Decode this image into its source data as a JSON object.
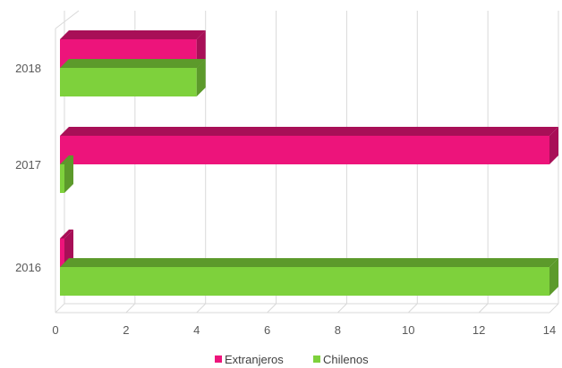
{
  "chart_data": {
    "type": "bar",
    "orientation": "horizontal",
    "style": "3d",
    "categories": [
      "2016",
      "2017",
      "2018"
    ],
    "series": [
      {
        "name": "Extranjeros",
        "values": [
          0,
          14,
          4
        ],
        "color": "#ED147B",
        "side_color": "#A80F57"
      },
      {
        "name": "Chilenos",
        "values": [
          14,
          0,
          4
        ],
        "color": "#7ED13C",
        "side_color": "#5C9A2B"
      }
    ],
    "xlim": [
      0,
      14
    ],
    "xticks": [
      "0",
      "2",
      "4",
      "6",
      "8",
      "10",
      "12",
      "14"
    ],
    "grid": true,
    "legend": "bottom"
  }
}
